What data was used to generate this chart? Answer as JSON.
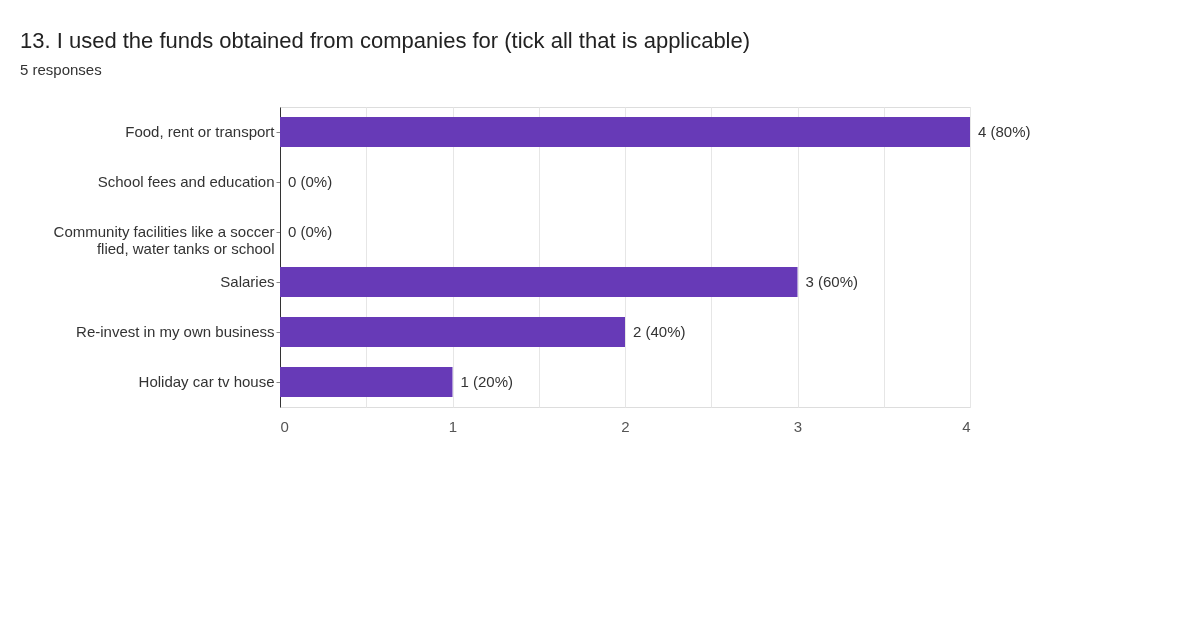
{
  "chart_data": {
    "type": "bar",
    "orientation": "horizontal",
    "title": "13.     I used the funds obtained from companies for  (tick all that is applicable)",
    "subtitle": "5 responses",
    "categories": [
      "Food, rent or transport",
      "School fees and education",
      "Community facilities like a soccer\nflied, water tanks or school",
      "Salaries",
      "Re-invest in my own business",
      "Holiday car tv house"
    ],
    "values": [
      4,
      0,
      0,
      3,
      2,
      1
    ],
    "value_labels": [
      "4 (80%)",
      "0 (0%)",
      "0 (0%)",
      "3 (60%)",
      "2 (40%)",
      "1 (20%)"
    ],
    "color": "#673ab7",
    "xlim": [
      0,
      4
    ],
    "xticks": [
      0,
      {
        "value": 0.5,
        "label": null
      },
      1,
      {
        "value": 1.5,
        "label": null
      },
      2,
      {
        "value": 2.5,
        "label": null
      },
      3,
      {
        "value": 3.5,
        "label": null
      },
      4
    ],
    "grid": "x"
  }
}
